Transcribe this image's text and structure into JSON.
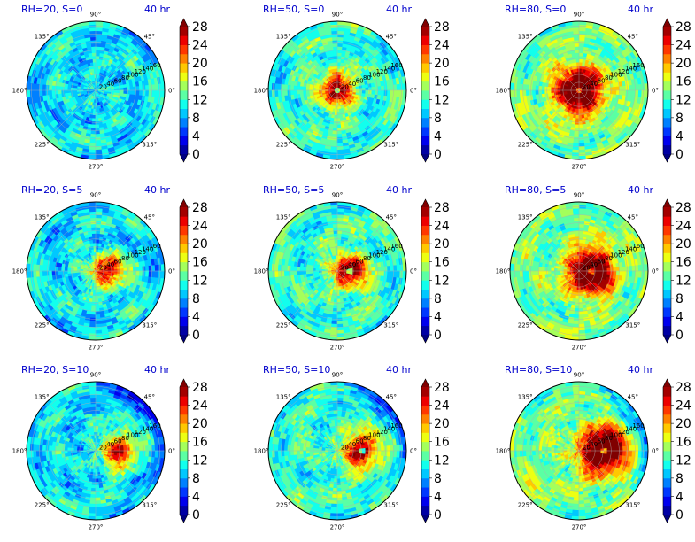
{
  "chart_data": {
    "type": "polar-contourf",
    "time_label": "40 hr",
    "angle_ticks": [
      "0°",
      "45°",
      "90°",
      "135°",
      "180°",
      "225°",
      "270°",
      "315°"
    ],
    "radius_ticks": [
      "20",
      "40",
      "60",
      "80",
      "100",
      "120",
      "140",
      "160"
    ],
    "colorbar": {
      "ticks": [
        "0",
        "4",
        "8",
        "12",
        "16",
        "20",
        "24",
        "28"
      ],
      "levels": [
        0,
        2,
        4,
        6,
        8,
        10,
        12,
        14,
        16,
        18,
        20,
        22,
        24,
        26,
        28
      ],
      "colormap": "jet",
      "extend": "both"
    },
    "panels": [
      {
        "title": "RH=20, S=0",
        "rh": 20,
        "s": 0
      },
      {
        "title": "RH=50, S=0",
        "rh": 50,
        "s": 0
      },
      {
        "title": "RH=80, S=0",
        "rh": 80,
        "s": 0
      },
      {
        "title": "RH=20, S=5",
        "rh": 20,
        "s": 5
      },
      {
        "title": "RH=50, S=5",
        "rh": 50,
        "s": 5
      },
      {
        "title": "RH=80, S=5",
        "rh": 80,
        "s": 5
      },
      {
        "title": "RH=20, S=10",
        "rh": 20,
        "s": 10
      },
      {
        "title": "RH=50, S=10",
        "rh": 50,
        "s": 10
      },
      {
        "title": "RH=80, S=10",
        "rh": 80,
        "s": 10
      }
    ]
  }
}
